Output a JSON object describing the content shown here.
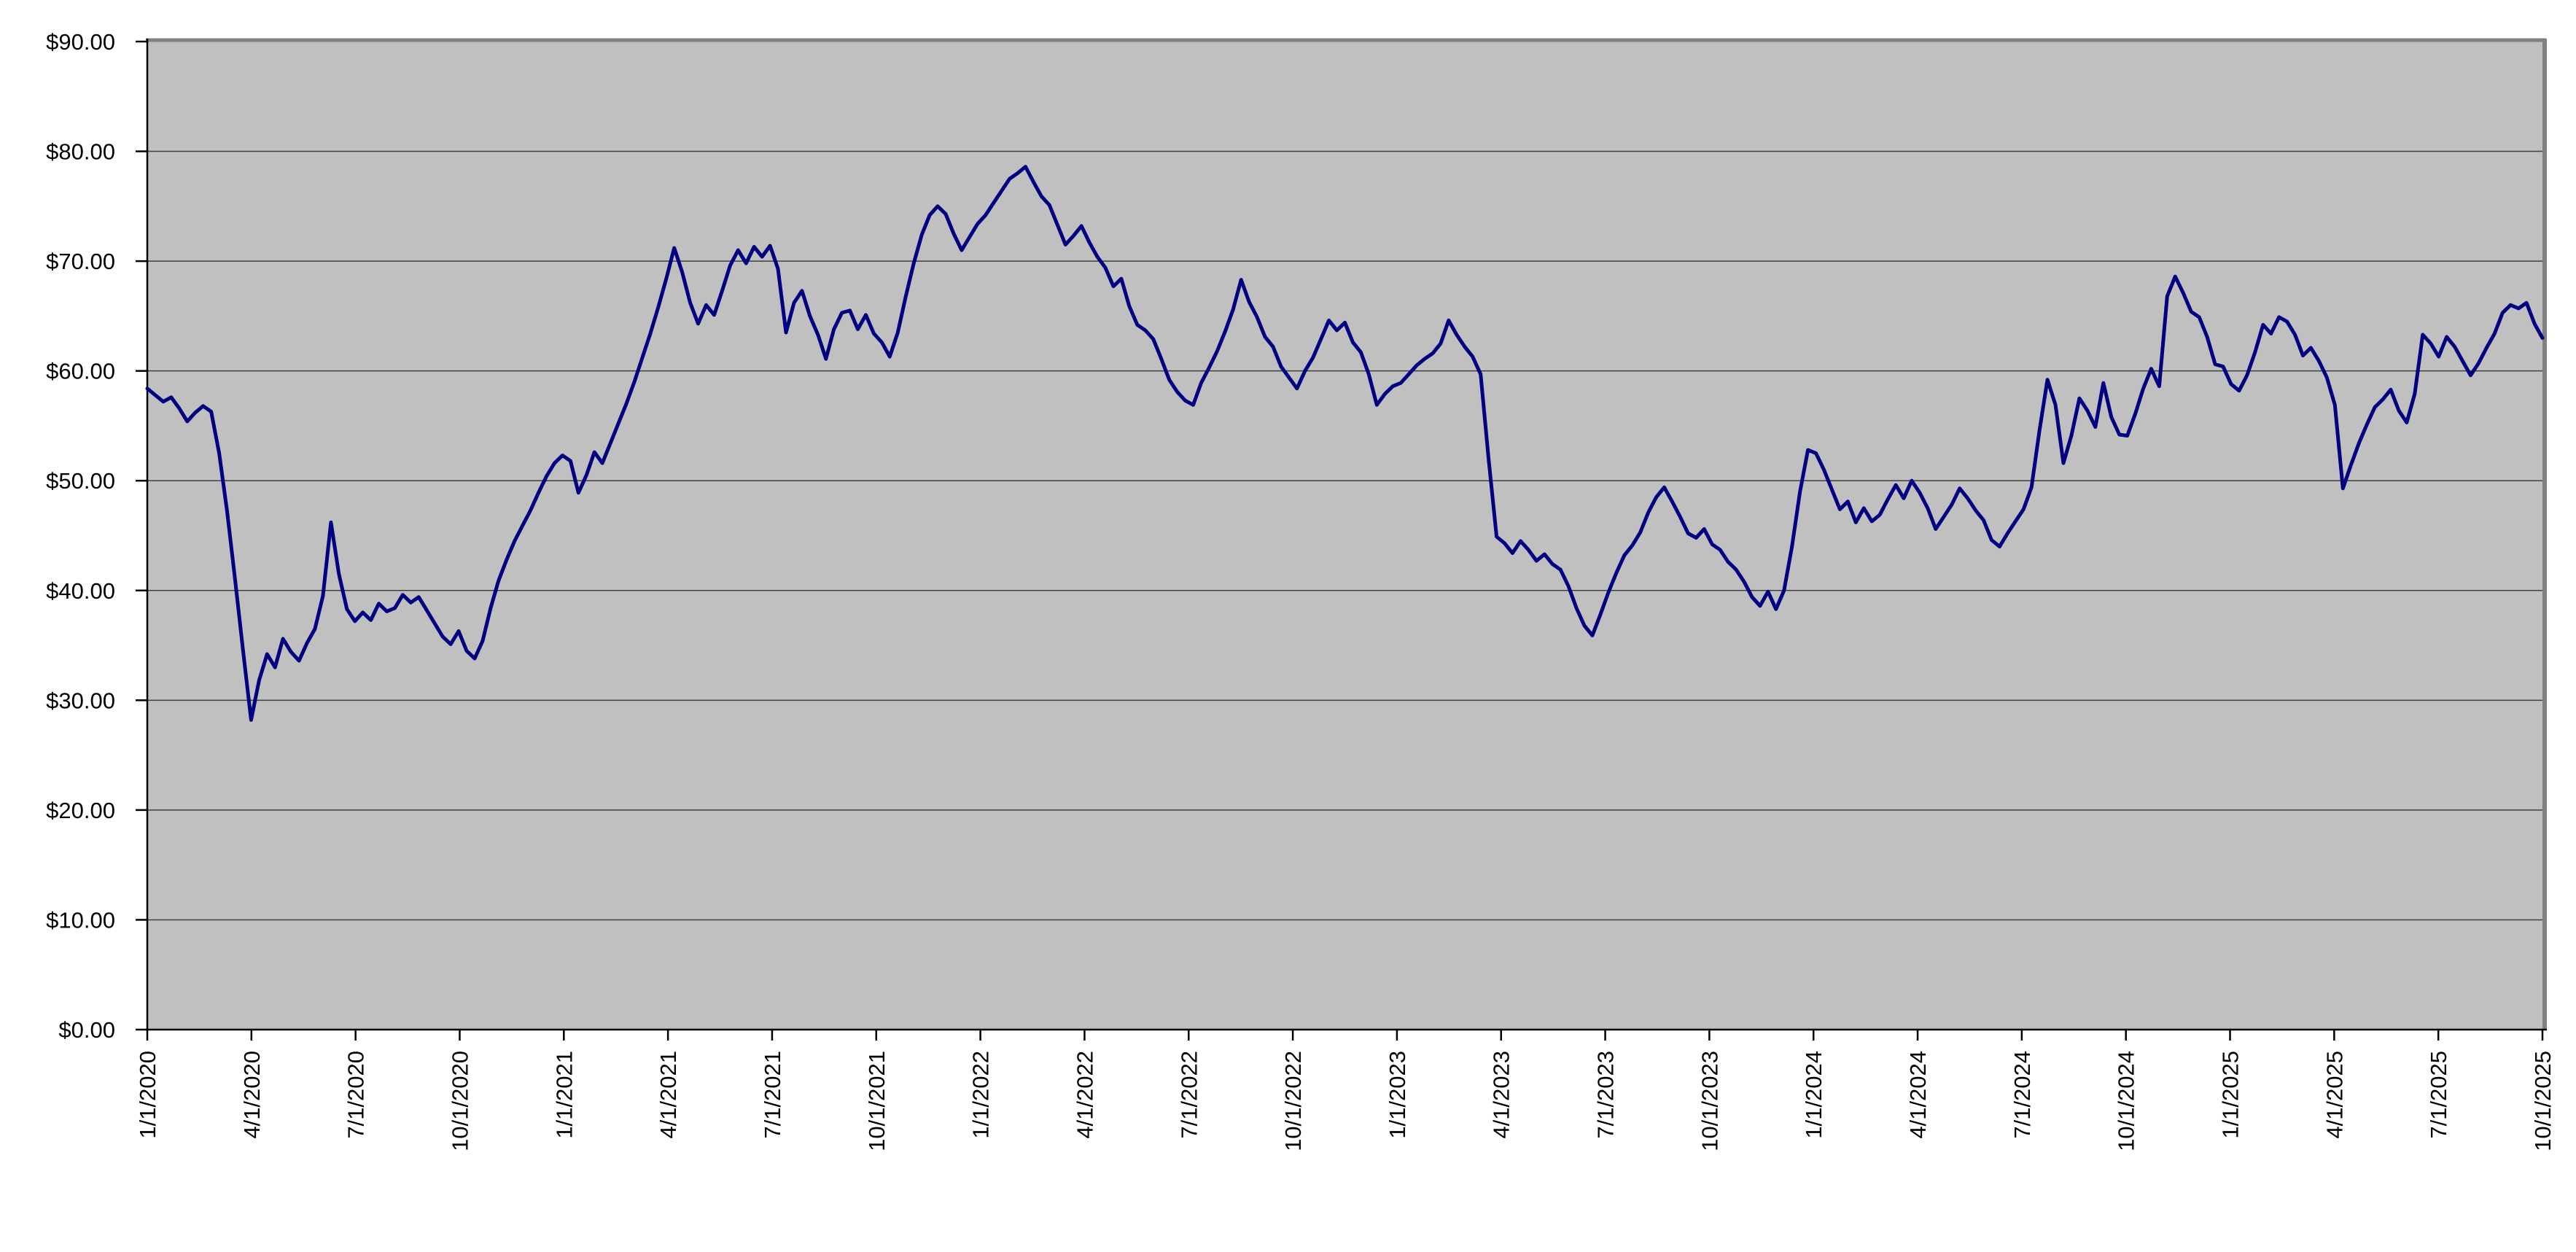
{
  "chart_data": {
    "type": "line",
    "title": "",
    "xlabel": "",
    "ylabel": "",
    "legend": "none",
    "grid": "horizontal",
    "plot_background_color": "#C0C0C0",
    "outer_background_color": "#FFFFFF",
    "gridline_color": "#3F3F3F",
    "border_shadow_color": "#808080",
    "axis_line_color": "#000000",
    "y_axis": {
      "min": 0,
      "max": 90,
      "step": 10,
      "tick_labels": [
        "$0.00",
        "$10.00",
        "$20.00",
        "$30.00",
        "$40.00",
        "$50.00",
        "$60.00",
        "$70.00",
        "$80.00",
        "$90.00"
      ]
    },
    "x_axis": {
      "tick_labels": [
        "1/1/2020",
        "4/1/2020",
        "7/1/2020",
        "10/1/2020",
        "1/1/2021",
        "4/1/2021",
        "7/1/2021",
        "10/1/2021",
        "1/1/2022",
        "4/1/2022",
        "7/1/2022",
        "10/1/2022",
        "1/1/2023",
        "4/1/2023",
        "7/1/2023",
        "10/1/2023",
        "1/1/2024",
        "4/1/2024",
        "7/1/2024",
        "10/1/2024",
        "1/1/2025",
        "4/1/2025",
        "7/1/2025",
        "10/1/2025"
      ],
      "label_rotation_degrees": -90
    },
    "series": [
      {
        "description": "daily share price line",
        "color": "#000080",
        "start_label": "1/1/2020",
        "end_label": "10/1/2025",
        "sampling": "weekly",
        "values": [
          58.4,
          57.8,
          57.2,
          57.6,
          56.6,
          55.4,
          56.2,
          56.8,
          56.3,
          52.5,
          47.2,
          41.0,
          34.5,
          28.2,
          31.8,
          34.2,
          33.0,
          35.6,
          34.4,
          33.6,
          35.2,
          36.5,
          39.5,
          46.2,
          41.5,
          38.3,
          37.2,
          38.0,
          37.3,
          38.8,
          38.1,
          38.4,
          39.6,
          38.9,
          39.4,
          38.2,
          37.0,
          35.8,
          35.1,
          36.3,
          34.5,
          33.8,
          35.4,
          38.4,
          40.9,
          42.8,
          44.5,
          45.9,
          47.3,
          48.9,
          50.4,
          51.6,
          52.3,
          51.8,
          48.9,
          50.5,
          52.6,
          51.6,
          53.4,
          55.2,
          57.0,
          59.0,
          61.2,
          63.4,
          65.8,
          68.4,
          71.2,
          69.0,
          66.2,
          64.3,
          66.0,
          65.1,
          67.3,
          69.6,
          71.0,
          69.8,
          71.3,
          70.4,
          71.4,
          69.3,
          63.5,
          66.2,
          67.3,
          65.0,
          63.3,
          61.1,
          63.8,
          65.3,
          65.5,
          63.8,
          65.1,
          63.4,
          62.6,
          61.3,
          63.5,
          66.8,
          69.8,
          72.4,
          74.2,
          75.0,
          74.3,
          72.5,
          71.0,
          72.2,
          73.4,
          74.2,
          75.3,
          76.4,
          77.5,
          78.0,
          78.6,
          77.2,
          75.9,
          75.1,
          73.3,
          71.5,
          72.3,
          73.2,
          71.7,
          70.4,
          69.4,
          67.7,
          68.4,
          65.9,
          64.2,
          63.7,
          62.9,
          61.1,
          59.2,
          58.1,
          57.3,
          56.9,
          58.9,
          60.3,
          61.8,
          63.6,
          65.6,
          68.3,
          66.3,
          64.9,
          63.1,
          62.2,
          60.4,
          59.4,
          58.4,
          60.0,
          61.2,
          62.9,
          64.6,
          63.7,
          64.4,
          62.6,
          61.7,
          59.7,
          56.9,
          57.9,
          58.6,
          58.9,
          59.7,
          60.5,
          61.1,
          61.6,
          62.5,
          64.6,
          63.3,
          62.2,
          61.3,
          59.7,
          52.0,
          44.9,
          44.3,
          43.4,
          44.5,
          43.7,
          42.7,
          43.3,
          42.4,
          41.9,
          40.4,
          38.4,
          36.8,
          35.9,
          37.8,
          39.8,
          41.6,
          43.2,
          44.1,
          45.3,
          47.1,
          48.5,
          49.4,
          48.1,
          46.7,
          45.2,
          44.8,
          45.6,
          44.2,
          43.7,
          42.6,
          41.9,
          40.8,
          39.4,
          38.6,
          39.9,
          38.3,
          40.0,
          44.0,
          49.0,
          52.8,
          52.5,
          51.0,
          49.2,
          47.4,
          48.1,
          46.2,
          47.5,
          46.3,
          46.9,
          48.3,
          49.6,
          48.4,
          50.0,
          48.9,
          47.5,
          45.6,
          46.7,
          47.8,
          49.3,
          48.4,
          47.3,
          46.4,
          44.6,
          44.0,
          45.2,
          46.3,
          47.4,
          49.4,
          54.6,
          59.2,
          56.9,
          51.6,
          54.1,
          57.5,
          56.4,
          54.9,
          58.9,
          55.8,
          54.2,
          54.1,
          56.1,
          58.4,
          60.2,
          58.6,
          66.8,
          68.6,
          67.1,
          65.4,
          64.9,
          63.1,
          60.6,
          60.4,
          58.8,
          58.2,
          59.6,
          61.7,
          64.2,
          63.4,
          64.9,
          64.5,
          63.3,
          61.4,
          62.1,
          60.9,
          59.4,
          56.9,
          49.3,
          51.4,
          53.4,
          55.1,
          56.7,
          57.4,
          58.3,
          56.4,
          55.3,
          57.9,
          63.3,
          62.5,
          61.3,
          63.1,
          62.2,
          60.9,
          59.6,
          60.7,
          62.1,
          63.4,
          65.3,
          66.0,
          65.7,
          66.2,
          64.3,
          63.0
        ]
      }
    ]
  }
}
